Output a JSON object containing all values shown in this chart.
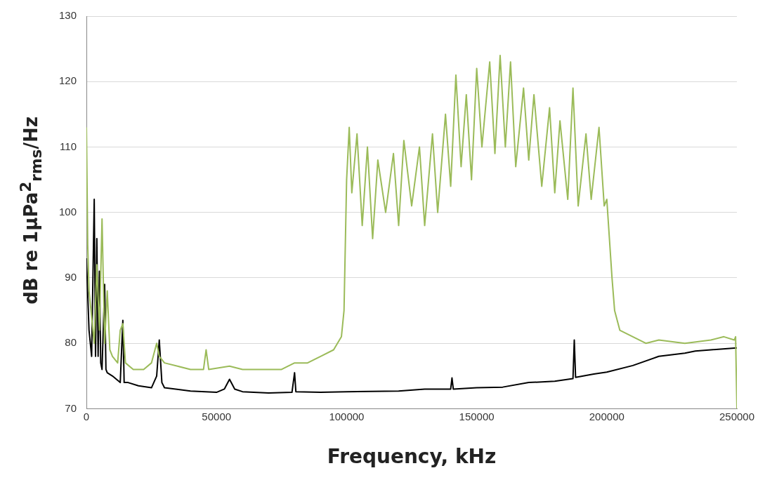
{
  "chart_data": {
    "type": "line",
    "xlabel": "Frequency, kHz",
    "ylabel": "dB re 1μPa$^{2}$$_{rms}$/Hz",
    "xlim": [
      0,
      250000
    ],
    "xticks": [
      0,
      50000,
      100000,
      150000,
      200000,
      250000
    ],
    "ylim": [
      70,
      130
    ],
    "yticks": [
      70,
      80,
      90,
      100,
      110,
      120,
      130
    ],
    "grid": "y",
    "legend": false,
    "marker": "none",
    "line_style": "solid",
    "series": [
      {
        "color": "#9bbb59",
        "x": [
          0,
          500,
          1000,
          2000,
          3000,
          4000,
          5000,
          6000,
          7000,
          8000,
          9000,
          10000,
          12000,
          13000,
          14000,
          15000,
          18000,
          22000,
          25000,
          27000,
          28000,
          30000,
          35000,
          40000,
          45000,
          46000,
          47000,
          55000,
          60000,
          70000,
          75000,
          80000,
          85000,
          90000,
          95000,
          98000,
          99000,
          100000,
          101000,
          102000,
          104000,
          106000,
          108000,
          110000,
          112000,
          115000,
          118000,
          120000,
          122000,
          125000,
          128000,
          130000,
          133000,
          135000,
          138000,
          140000,
          142000,
          144000,
          146000,
          148000,
          150000,
          152000,
          155000,
          157000,
          159000,
          161000,
          163000,
          165000,
          168000,
          170000,
          172000,
          175000,
          178000,
          180000,
          182000,
          185000,
          187000,
          189000,
          192000,
          194000,
          197000,
          199000,
          200000,
          202000,
          203000,
          205000,
          210000,
          215000,
          220000,
          230000,
          240000,
          245000,
          249000,
          249500,
          250000
        ],
        "values": [
          113,
          95,
          88,
          84,
          80,
          92,
          82,
          99,
          80,
          88,
          79,
          78,
          77,
          82,
          83,
          77,
          76,
          76,
          77,
          80,
          78,
          77,
          76.5,
          76,
          76,
          79,
          76,
          76.5,
          76,
          76,
          76,
          77,
          77,
          78,
          79,
          81,
          85,
          105,
          113,
          103,
          112,
          98,
          110,
          96,
          108,
          100,
          109,
          98,
          111,
          101,
          110,
          98,
          112,
          100,
          115,
          104,
          121,
          107,
          118,
          105,
          122,
          110,
          123,
          109,
          124,
          110,
          123,
          107,
          119,
          108,
          118,
          104,
          116,
          103,
          114,
          102,
          119,
          101,
          112,
          102,
          113,
          101,
          102,
          90,
          85,
          82,
          81,
          80,
          80.5,
          80,
          80.5,
          81,
          80.5,
          81,
          70
        ]
      },
      {
        "color": "#000000",
        "x": [
          0,
          1000,
          2000,
          3000,
          3500,
          4000,
          4500,
          5000,
          5500,
          6000,
          7000,
          7500,
          8000,
          10000,
          13000,
          14000,
          14500,
          16000,
          20000,
          25000,
          27000,
          28000,
          29000,
          30000,
          40000,
          50000,
          53000,
          55000,
          57000,
          60000,
          70000,
          79000,
          80000,
          80500,
          90000,
          100000,
          120000,
          130000,
          140000,
          140500,
          141000,
          150000,
          160000,
          170000,
          180000,
          187000,
          187500,
          188000,
          195000,
          200000,
          210000,
          220000,
          230000,
          234000,
          240000,
          250000
        ],
        "values": [
          93,
          82,
          78,
          102,
          78,
          96,
          78,
          91,
          77,
          76,
          89,
          76,
          75.5,
          75,
          74,
          83.5,
          74,
          74,
          73.5,
          73.2,
          75,
          80.5,
          74,
          73.2,
          72.7,
          72.5,
          73,
          74.5,
          73,
          72.6,
          72.4,
          72.5,
          75.5,
          72.6,
          72.5,
          72.6,
          72.7,
          73,
          73,
          74.7,
          73,
          73.2,
          73.3,
          74,
          74.2,
          74.6,
          80.5,
          74.8,
          75.3,
          75.6,
          76.6,
          78,
          78.5,
          78.8,
          79,
          79.3
        ]
      }
    ]
  }
}
